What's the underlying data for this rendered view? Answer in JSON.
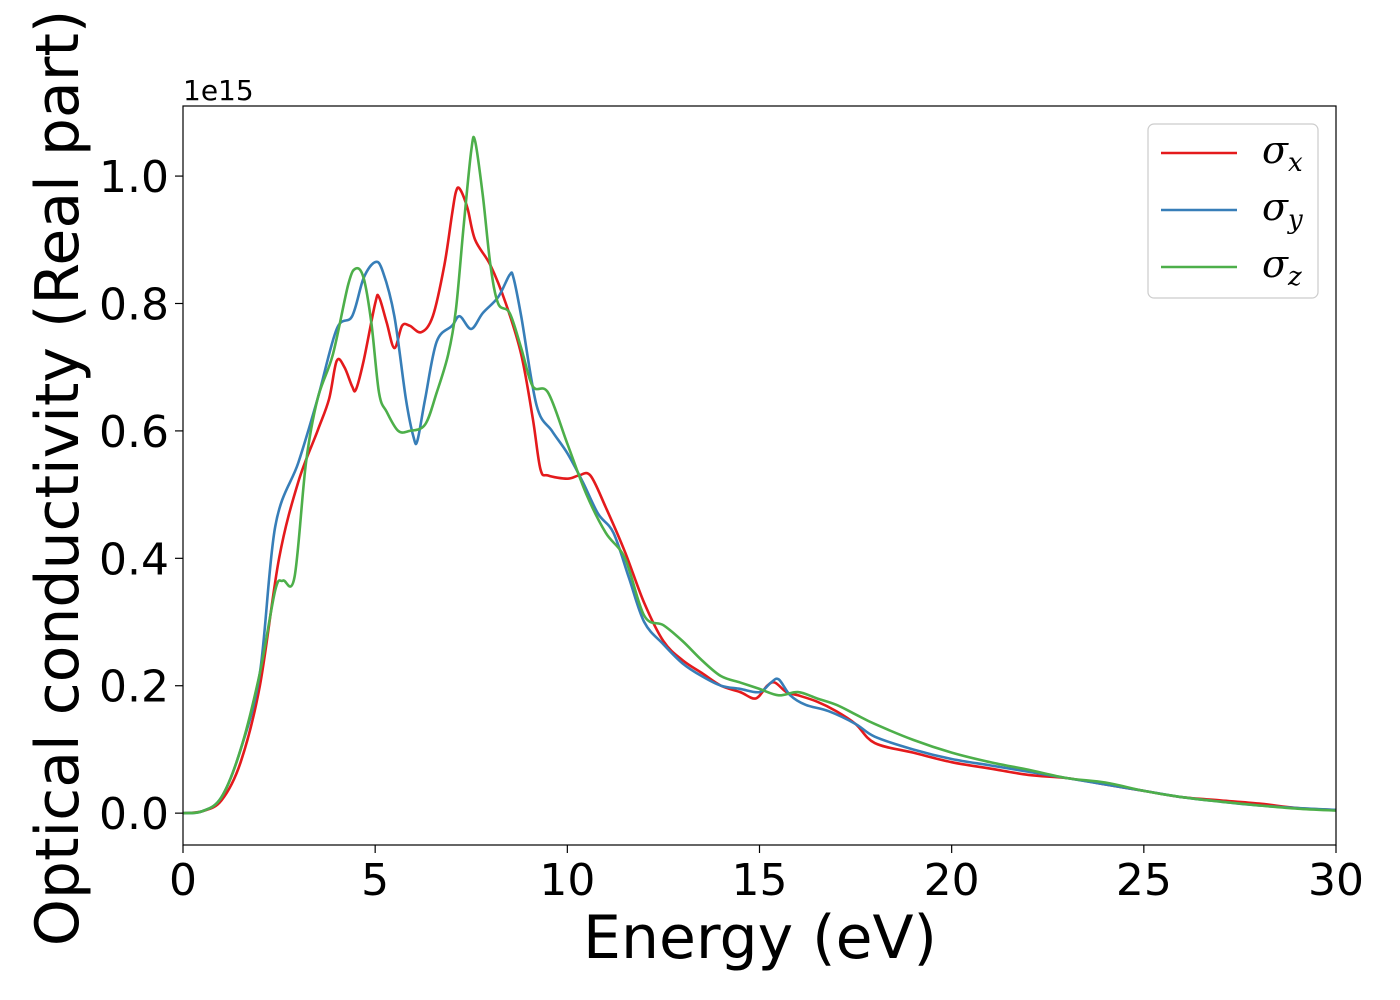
{
  "chart_data": {
    "type": "line",
    "xlabel": "Energy (eV)",
    "ylabel": "Optical conductivity (Real part)",
    "y_offset_label": "1e15",
    "xlim": [
      0,
      30
    ],
    "ylim": [
      -0.05,
      1.11
    ],
    "x_ticks": [
      0,
      5,
      10,
      15,
      20,
      25,
      30
    ],
    "x_tick_labels": [
      "0",
      "5",
      "10",
      "15",
      "20",
      "25",
      "30"
    ],
    "y_ticks": [
      0.0,
      0.2,
      0.4,
      0.6,
      0.8,
      1.0
    ],
    "y_tick_labels": [
      "0.0",
      "0.2",
      "0.4",
      "0.6",
      "0.8",
      "1.0"
    ],
    "grid": false,
    "legend_position": "top-right",
    "series": [
      {
        "name": "σ",
        "subscript": "x",
        "color": "#e41a1c",
        "points": [
          [
            0,
            0
          ],
          [
            0.5,
            0.003
          ],
          [
            1.0,
            0.02
          ],
          [
            1.5,
            0.08
          ],
          [
            2.0,
            0.2
          ],
          [
            2.5,
            0.4
          ],
          [
            3.0,
            0.52
          ],
          [
            3.5,
            0.6
          ],
          [
            3.8,
            0.65
          ],
          [
            4.0,
            0.71
          ],
          [
            4.2,
            0.7
          ],
          [
            4.4,
            0.67
          ],
          [
            4.5,
            0.665
          ],
          [
            4.7,
            0.71
          ],
          [
            5.0,
            0.8
          ],
          [
            5.1,
            0.81
          ],
          [
            5.3,
            0.77
          ],
          [
            5.5,
            0.73
          ],
          [
            5.7,
            0.765
          ],
          [
            5.9,
            0.765
          ],
          [
            6.2,
            0.755
          ],
          [
            6.5,
            0.78
          ],
          [
            6.8,
            0.86
          ],
          [
            7.0,
            0.94
          ],
          [
            7.1,
            0.975
          ],
          [
            7.2,
            0.98
          ],
          [
            7.4,
            0.95
          ],
          [
            7.6,
            0.9
          ],
          [
            8.0,
            0.86
          ],
          [
            8.4,
            0.8
          ],
          [
            8.8,
            0.72
          ],
          [
            9.1,
            0.62
          ],
          [
            9.3,
            0.54
          ],
          [
            9.5,
            0.53
          ],
          [
            10.0,
            0.525
          ],
          [
            10.3,
            0.53
          ],
          [
            10.6,
            0.53
          ],
          [
            11.0,
            0.48
          ],
          [
            11.5,
            0.41
          ],
          [
            12.0,
            0.33
          ],
          [
            12.5,
            0.27
          ],
          [
            13.0,
            0.24
          ],
          [
            13.5,
            0.22
          ],
          [
            14.0,
            0.2
          ],
          [
            14.5,
            0.19
          ],
          [
            14.9,
            0.18
          ],
          [
            15.2,
            0.2
          ],
          [
            15.4,
            0.205
          ],
          [
            15.7,
            0.19
          ],
          [
            16.0,
            0.185
          ],
          [
            16.5,
            0.175
          ],
          [
            17.0,
            0.16
          ],
          [
            17.5,
            0.14
          ],
          [
            18.0,
            0.11
          ],
          [
            19.0,
            0.095
          ],
          [
            20.0,
            0.08
          ],
          [
            21.0,
            0.07
          ],
          [
            22.0,
            0.06
          ],
          [
            23.0,
            0.055
          ],
          [
            24.0,
            0.045
          ],
          [
            25.0,
            0.035
          ],
          [
            26.0,
            0.025
          ],
          [
            27.0,
            0.02
          ],
          [
            28.0,
            0.015
          ],
          [
            29.0,
            0.008
          ],
          [
            30.0,
            0.005
          ]
        ]
      },
      {
        "name": "σ",
        "subscript": "y",
        "color": "#377eb8",
        "points": [
          [
            0,
            0
          ],
          [
            0.5,
            0.003
          ],
          [
            1.0,
            0.025
          ],
          [
            1.5,
            0.1
          ],
          [
            2.0,
            0.22
          ],
          [
            2.4,
            0.45
          ],
          [
            3.0,
            0.55
          ],
          [
            3.5,
            0.65
          ],
          [
            4.0,
            0.76
          ],
          [
            4.4,
            0.78
          ],
          [
            4.7,
            0.84
          ],
          [
            5.0,
            0.865
          ],
          [
            5.2,
            0.85
          ],
          [
            5.5,
            0.78
          ],
          [
            5.8,
            0.65
          ],
          [
            6.0,
            0.59
          ],
          [
            6.1,
            0.585
          ],
          [
            6.3,
            0.65
          ],
          [
            6.6,
            0.74
          ],
          [
            7.0,
            0.765
          ],
          [
            7.2,
            0.78
          ],
          [
            7.5,
            0.76
          ],
          [
            7.8,
            0.785
          ],
          [
            8.2,
            0.81
          ],
          [
            8.5,
            0.845
          ],
          [
            8.6,
            0.84
          ],
          [
            8.8,
            0.78
          ],
          [
            9.2,
            0.64
          ],
          [
            9.6,
            0.6
          ],
          [
            10.0,
            0.565
          ],
          [
            10.4,
            0.52
          ],
          [
            10.8,
            0.47
          ],
          [
            11.2,
            0.44
          ],
          [
            11.6,
            0.37
          ],
          [
            12.0,
            0.3
          ],
          [
            12.5,
            0.265
          ],
          [
            13.0,
            0.235
          ],
          [
            13.5,
            0.215
          ],
          [
            14.0,
            0.2
          ],
          [
            14.5,
            0.195
          ],
          [
            15.0,
            0.19
          ],
          [
            15.3,
            0.205
          ],
          [
            15.5,
            0.21
          ],
          [
            15.8,
            0.185
          ],
          [
            16.2,
            0.17
          ],
          [
            16.8,
            0.16
          ],
          [
            17.5,
            0.14
          ],
          [
            18.0,
            0.12
          ],
          [
            19.0,
            0.1
          ],
          [
            20.0,
            0.085
          ],
          [
            21.0,
            0.075
          ],
          [
            22.0,
            0.065
          ],
          [
            23.0,
            0.055
          ],
          [
            24.0,
            0.045
          ],
          [
            25.0,
            0.035
          ],
          [
            26.0,
            0.025
          ],
          [
            27.0,
            0.018
          ],
          [
            28.0,
            0.012
          ],
          [
            29.0,
            0.008
          ],
          [
            30.0,
            0.005
          ]
        ]
      },
      {
        "name": "σ",
        "subscript": "z",
        "color": "#4daf4a",
        "points": [
          [
            0,
            0
          ],
          [
            0.5,
            0.003
          ],
          [
            1.0,
            0.025
          ],
          [
            1.5,
            0.1
          ],
          [
            2.0,
            0.22
          ],
          [
            2.4,
            0.35
          ],
          [
            2.6,
            0.365
          ],
          [
            2.9,
            0.37
          ],
          [
            3.2,
            0.55
          ],
          [
            3.5,
            0.65
          ],
          [
            3.9,
            0.72
          ],
          [
            4.3,
            0.83
          ],
          [
            4.5,
            0.855
          ],
          [
            4.7,
            0.84
          ],
          [
            4.9,
            0.77
          ],
          [
            5.1,
            0.66
          ],
          [
            5.3,
            0.63
          ],
          [
            5.6,
            0.6
          ],
          [
            5.9,
            0.6
          ],
          [
            6.3,
            0.61
          ],
          [
            6.6,
            0.66
          ],
          [
            6.9,
            0.72
          ],
          [
            7.1,
            0.79
          ],
          [
            7.3,
            0.92
          ],
          [
            7.5,
            1.04
          ],
          [
            7.6,
            1.055
          ],
          [
            7.8,
            0.97
          ],
          [
            8.0,
            0.86
          ],
          [
            8.2,
            0.8
          ],
          [
            8.5,
            0.785
          ],
          [
            8.8,
            0.73
          ],
          [
            9.1,
            0.67
          ],
          [
            9.5,
            0.66
          ],
          [
            10.0,
            0.58
          ],
          [
            10.5,
            0.5
          ],
          [
            11.0,
            0.44
          ],
          [
            11.5,
            0.4
          ],
          [
            12.0,
            0.31
          ],
          [
            12.5,
            0.295
          ],
          [
            13.0,
            0.27
          ],
          [
            13.5,
            0.24
          ],
          [
            14.0,
            0.215
          ],
          [
            14.5,
            0.205
          ],
          [
            15.0,
            0.195
          ],
          [
            15.5,
            0.185
          ],
          [
            16.0,
            0.19
          ],
          [
            16.5,
            0.18
          ],
          [
            17.0,
            0.17
          ],
          [
            17.5,
            0.155
          ],
          [
            18.0,
            0.14
          ],
          [
            19.0,
            0.115
          ],
          [
            20.0,
            0.095
          ],
          [
            21.0,
            0.08
          ],
          [
            22.0,
            0.068
          ],
          [
            23.0,
            0.055
          ],
          [
            24.0,
            0.048
          ],
          [
            25.0,
            0.035
          ],
          [
            26.0,
            0.025
          ],
          [
            27.0,
            0.018
          ],
          [
            28.0,
            0.012
          ],
          [
            29.0,
            0.007
          ],
          [
            30.0,
            0.004
          ]
        ]
      }
    ]
  }
}
